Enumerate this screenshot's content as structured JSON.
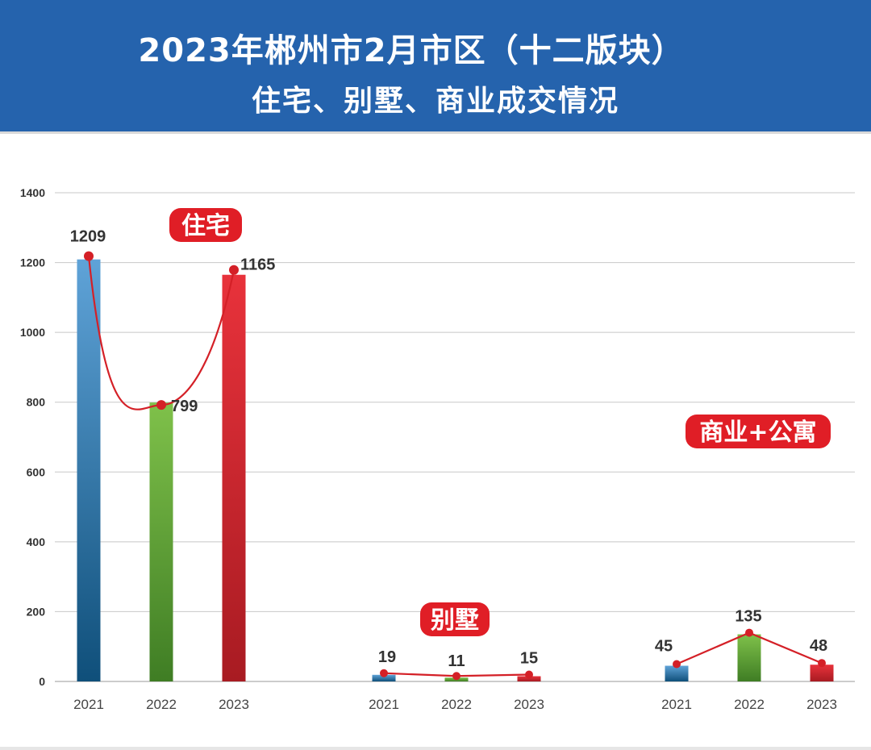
{
  "header": {
    "title_line1": "2023年郴州市2月市区（十二版块）",
    "title_line2": "住宅、别墅、商业成交情况"
  },
  "colors": {
    "header_bg": "#2563ad",
    "bar_2021": "#2f7fb8",
    "bar_2022": "#6aab3a",
    "bar_2023": "#d9262c",
    "trend_line": "#d42027",
    "group_label_bg": "#e01e26"
  },
  "chart_data": {
    "type": "bar",
    "ylim": [
      0,
      1400
    ],
    "yticks": [
      0,
      200,
      400,
      600,
      800,
      1000,
      1200,
      1400
    ],
    "grid": true,
    "groups": [
      {
        "name": "住宅",
        "categories": [
          "2021",
          "2022",
          "2023"
        ],
        "values": [
          1209,
          799,
          1165
        ],
        "labels": [
          "1209",
          "799",
          "1165"
        ]
      },
      {
        "name": "别墅",
        "categories": [
          "2021",
          "2022",
          "2023"
        ],
        "values": [
          19,
          11,
          15
        ],
        "labels": [
          "19",
          "11",
          "15"
        ]
      },
      {
        "name": "商业+公寓",
        "categories": [
          "2021",
          "2022",
          "2023"
        ],
        "values": [
          45,
          135,
          48
        ],
        "labels": [
          "45",
          "135",
          "48"
        ]
      }
    ]
  }
}
